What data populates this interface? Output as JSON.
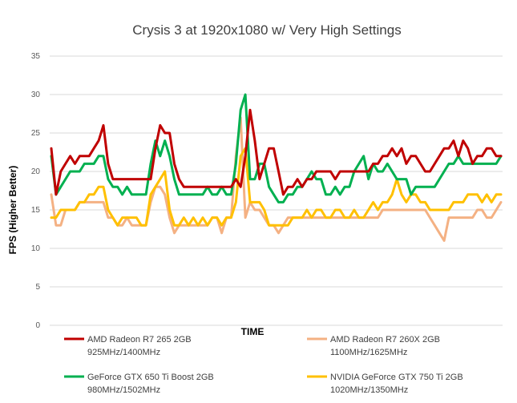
{
  "chart_data": {
    "type": "line",
    "title": "Crysis 3 at 1920x1080 w/ Very High Settings",
    "xlabel": "TIME",
    "ylabel": "FPS (Higher Better)",
    "ylim": [
      0,
      35
    ],
    "yticks": [
      0,
      5,
      10,
      15,
      20,
      25,
      30,
      35
    ],
    "grid": true,
    "legend": "bottom",
    "series": [
      {
        "name": "AMD Radeon R7 265 2GB 925MHz/1400MHz",
        "label_line1": "AMD Radeon R7 265 2GB",
        "label_line2": "925MHz/1400MHz",
        "color": "#c00000",
        "values": [
          23,
          17,
          20,
          21,
          22,
          21,
          22,
          22,
          22,
          23,
          24,
          26,
          21,
          19,
          19,
          19,
          19,
          19,
          19,
          19,
          19,
          19,
          23,
          26,
          25,
          25,
          21,
          19,
          18,
          18,
          18,
          18,
          18,
          18,
          18,
          18,
          18,
          18,
          18,
          19,
          18,
          22,
          28,
          24,
          19,
          21,
          23,
          23,
          20,
          17,
          18,
          18,
          19,
          18,
          19,
          19,
          20,
          20,
          20,
          20,
          19,
          20,
          20,
          20,
          20,
          20,
          20,
          20,
          21,
          21,
          22,
          22,
          23,
          22,
          23,
          21,
          22,
          22,
          21,
          20,
          20,
          21,
          22,
          23,
          23,
          24,
          22,
          24,
          23,
          21,
          22,
          22,
          23,
          23,
          22,
          22
        ]
      },
      {
        "name": "AMD Radeon R7 260X 2GB 1100MHz/1625MHz",
        "label_line1": "AMD Radeon R7 260X 2GB",
        "label_line2": "1100MHz/1625MHz",
        "color": "#f4b183",
        "values": [
          17,
          13,
          13,
          15,
          15,
          15,
          16,
          16,
          16,
          16,
          16,
          16,
          14,
          14,
          13,
          13,
          14,
          13,
          13,
          13,
          13,
          16,
          18,
          18,
          17,
          14,
          12,
          13,
          13,
          13,
          13,
          13,
          13,
          13,
          14,
          14,
          12,
          14,
          14,
          22,
          27,
          14,
          16,
          15,
          15,
          14,
          13,
          13,
          12,
          13,
          14,
          14,
          14,
          14,
          14,
          14,
          14,
          14,
          14,
          14,
          14,
          14,
          14,
          14,
          14,
          14,
          14,
          14,
          14,
          14,
          15,
          15,
          15,
          15,
          15,
          15,
          15,
          15,
          15,
          15,
          14,
          13,
          12,
          11,
          14,
          14,
          14,
          14,
          14,
          14,
          15,
          15,
          14,
          14,
          15,
          16
        ]
      },
      {
        "name": "GeForce GTX 650 Ti Boost 2GB 980MHz/1502MHz",
        "label_line1": "GeForce GTX 650 Ti Boost 2GB",
        "label_line2": "980MHz/1502MHz",
        "color": "#00b050",
        "values": [
          22,
          17,
          18,
          19,
          20,
          20,
          20,
          21,
          21,
          21,
          22,
          22,
          19,
          18,
          18,
          17,
          18,
          17,
          17,
          17,
          17,
          21,
          24,
          22,
          24,
          22,
          19,
          17,
          17,
          17,
          17,
          17,
          17,
          18,
          17,
          17,
          18,
          17,
          17,
          21,
          28,
          30,
          19,
          19,
          21,
          21,
          18,
          17,
          16,
          16,
          17,
          17,
          18,
          18,
          19,
          20,
          19,
          19,
          17,
          17,
          18,
          17,
          18,
          18,
          20,
          21,
          22,
          19,
          21,
          20,
          20,
          21,
          20,
          19,
          19,
          19,
          17,
          18,
          18,
          18,
          18,
          18,
          19,
          20,
          21,
          21,
          22,
          21,
          21,
          21,
          21,
          21,
          21,
          21,
          21,
          22
        ]
      },
      {
        "name": "NVIDIA GeForce GTX 750 Ti 2GB 1020MHz/1350MHz",
        "label_line1": "NVIDIA GeForce GTX 750 Ti 2GB",
        "label_line2": "1020MHz/1350MHz",
        "color": "#ffc000",
        "values": [
          14,
          14,
          15,
          15,
          15,
          15,
          16,
          16,
          17,
          17,
          18,
          18,
          15,
          14,
          13,
          14,
          14,
          14,
          14,
          13,
          13,
          17,
          18,
          19,
          20,
          15,
          13,
          13,
          14,
          13,
          14,
          13,
          14,
          13,
          14,
          14,
          13,
          14,
          14,
          16,
          22,
          23,
          16,
          16,
          16,
          15,
          13,
          13,
          13,
          13,
          13,
          14,
          14,
          14,
          15,
          14,
          15,
          15,
          14,
          14,
          15,
          15,
          14,
          14,
          15,
          14,
          14,
          15,
          16,
          15,
          16,
          16,
          17,
          19,
          17,
          16,
          17,
          17,
          16,
          16,
          15,
          15,
          15,
          15,
          15,
          16,
          16,
          16,
          17,
          17,
          17,
          16,
          17,
          16,
          17,
          17
        ]
      }
    ]
  }
}
